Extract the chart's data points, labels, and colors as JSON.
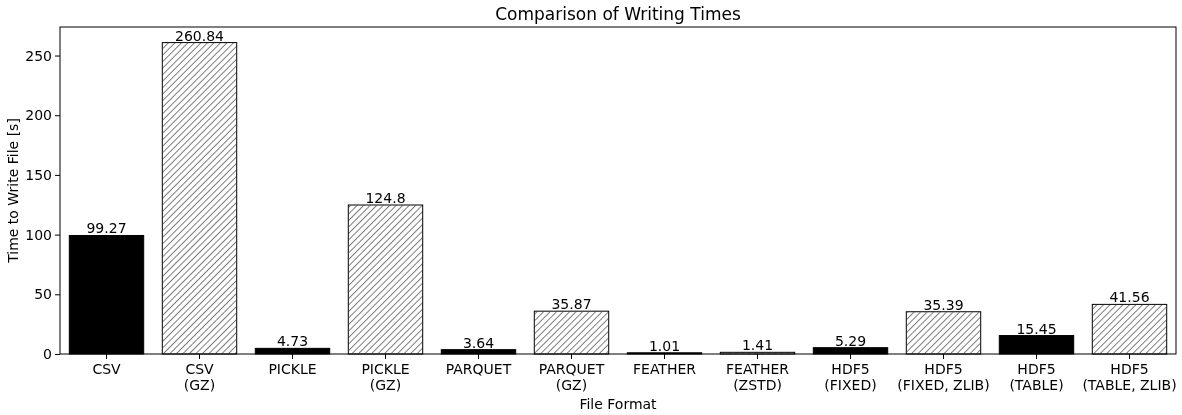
{
  "chart_data": {
    "type": "bar",
    "title": "Comparison of Writing Times",
    "xlabel": "File Format",
    "ylabel": "Time to Write File [s]",
    "categories": [
      "CSV",
      "CSV\n(GZ)",
      "PICKLE",
      "PICKLE\n(GZ)",
      "PARQUET",
      "PARQUET\n(GZ)",
      "FEATHER",
      "FEATHER\n(ZSTD)",
      "HDF5\n(FIXED)",
      "HDF5\n(FIXED, ZLIB)",
      "HDF5\n(TABLE)",
      "HDF5\n(TABLE, ZLIB)"
    ],
    "values": [
      99.27,
      260.84,
      4.73,
      124.8,
      3.64,
      35.87,
      1.01,
      1.41,
      5.29,
      35.39,
      15.45,
      41.56
    ],
    "colors": [
      "#000000",
      "#ffffff",
      "#000000",
      "#ffffff",
      "#000000",
      "#ffffff",
      "#000000",
      "#ffffff",
      "#000000",
      "#ffffff",
      "#000000",
      "#ffffff"
    ],
    "ylim": [
      0,
      273.9
    ],
    "yticks": [
      0,
      50,
      100,
      150,
      200,
      250
    ],
    "data_labels": true,
    "grid": false
  }
}
